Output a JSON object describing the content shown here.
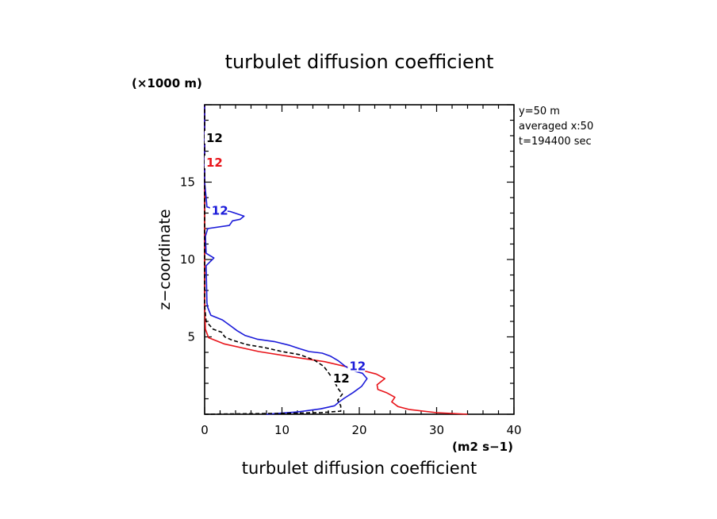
{
  "chart_data": {
    "type": "line",
    "title": "turbulet diffusion coefficient",
    "xlabel": "turbulet diffusion coefficient",
    "x_unit": "(m2 s−1)",
    "ylabel": "z−coordinate",
    "y_unit": "(×1000 m)",
    "xlim": [
      0,
      40
    ],
    "ylim": [
      0,
      20
    ],
    "x_ticks": [
      "0",
      "10",
      "20",
      "30",
      "40"
    ],
    "y_ticks": [
      "5",
      "10",
      "15"
    ],
    "annotations": [
      "y=50 m",
      "averaged  x:50",
      "t=194400 sec"
    ],
    "contour_label": "12",
    "series": [
      {
        "color": "#e8141a",
        "dash": "solid",
        "points": [
          [
            34,
            0
          ],
          [
            30,
            0.1
          ],
          [
            26.5,
            0.3
          ],
          [
            25,
            0.5
          ],
          [
            24.2,
            0.8
          ],
          [
            24.6,
            1.1
          ],
          [
            23.5,
            1.4
          ],
          [
            22.4,
            1.6
          ],
          [
            22.3,
            1.9
          ],
          [
            23.3,
            2.3
          ],
          [
            22.2,
            2.6
          ],
          [
            20.6,
            2.8
          ],
          [
            18.5,
            3.05
          ],
          [
            15.5,
            3.4
          ],
          [
            11.5,
            3.7
          ],
          [
            7,
            4.05
          ],
          [
            2.5,
            4.55
          ],
          [
            0.5,
            4.95
          ],
          [
            0.1,
            5.5
          ],
          [
            0,
            7
          ],
          [
            0,
            20
          ]
        ]
      },
      {
        "color": "#1b1bd9",
        "dash": "solid",
        "points": [
          [
            8,
            0
          ],
          [
            12,
            0.15
          ],
          [
            15,
            0.35
          ],
          [
            16.8,
            0.55
          ],
          [
            17.4,
            0.8
          ],
          [
            18.1,
            1.05
          ],
          [
            19.2,
            1.4
          ],
          [
            20.3,
            1.8
          ],
          [
            21,
            2.3
          ],
          [
            20.4,
            2.65
          ],
          [
            19.2,
            2.8
          ],
          [
            18.2,
            3.1
          ],
          [
            17.3,
            3.45
          ],
          [
            16.3,
            3.75
          ],
          [
            15.2,
            3.95
          ],
          [
            13.5,
            4.05
          ],
          [
            12.2,
            4.25
          ],
          [
            11,
            4.45
          ],
          [
            9,
            4.7
          ],
          [
            6.8,
            4.85
          ],
          [
            5.2,
            5.1
          ],
          [
            4.2,
            5.4
          ],
          [
            3.4,
            5.7
          ],
          [
            2.3,
            6.1
          ],
          [
            0.8,
            6.4
          ],
          [
            0.4,
            6.9
          ],
          [
            0.3,
            7.2
          ],
          [
            0.2,
            9.6
          ],
          [
            1.2,
            10.1
          ],
          [
            0.2,
            10.4
          ],
          [
            0.1,
            11.5
          ],
          [
            0.4,
            12
          ],
          [
            3.2,
            12.2
          ],
          [
            3.6,
            12.5
          ],
          [
            4.6,
            12.6
          ],
          [
            5.1,
            12.8
          ],
          [
            3.3,
            13.1
          ],
          [
            1.6,
            13.2
          ],
          [
            0.3,
            13.4
          ],
          [
            0.2,
            14
          ],
          [
            0,
            15
          ],
          [
            0,
            20
          ]
        ]
      },
      {
        "color": "#000000",
        "dash": "5,3",
        "points": [
          [
            0,
            0
          ],
          [
            3,
            0.02
          ],
          [
            9,
            0.05
          ],
          [
            15,
            0.1
          ],
          [
            17.6,
            0.2
          ],
          [
            17.6,
            0.55
          ],
          [
            17.2,
            0.9
          ],
          [
            17.8,
            1.3
          ],
          [
            17.2,
            1.7
          ],
          [
            16.7,
            2.2
          ],
          [
            16,
            2.7
          ],
          [
            15.4,
            3.1
          ],
          [
            14.2,
            3.5
          ],
          [
            12.3,
            3.85
          ],
          [
            10,
            4.05
          ],
          [
            7.8,
            4.3
          ],
          [
            5.5,
            4.5
          ],
          [
            3.5,
            4.8
          ],
          [
            2.6,
            5
          ],
          [
            2.2,
            5.3
          ],
          [
            1.1,
            5.5
          ],
          [
            0.2,
            6
          ],
          [
            0,
            7
          ],
          [
            0,
            20
          ]
        ]
      }
    ],
    "labels": [
      {
        "x": 0.2,
        "y": 17.8,
        "color": "#000000",
        "text": "12"
      },
      {
        "x": 0.2,
        "y": 16.2,
        "color": "#e8141a",
        "text": "12"
      },
      {
        "x": 0.9,
        "y": 13.1,
        "color": "#1b1bd9",
        "text": "12"
      },
      {
        "x": 18.7,
        "y": 3.05,
        "color": "#1b1bd9",
        "text": "12"
      },
      {
        "x": 16.6,
        "y": 2.25,
        "color": "#000000",
        "text": "12"
      }
    ]
  }
}
